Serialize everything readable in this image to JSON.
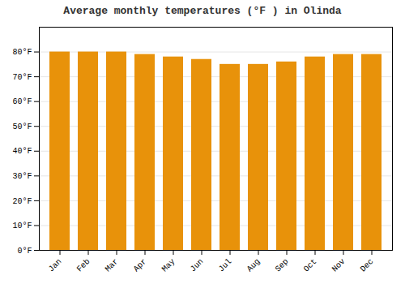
{
  "chart_data": {
    "type": "bar",
    "title": "Average monthly temperatures (°F ) in Olinda",
    "categories": [
      "Jan",
      "Feb",
      "Mar",
      "Apr",
      "May",
      "Jun",
      "Jul",
      "Aug",
      "Sep",
      "Oct",
      "Nov",
      "Dec"
    ],
    "values": [
      80,
      80,
      80,
      79,
      78,
      77,
      75,
      75,
      76,
      78,
      79,
      79
    ],
    "color": "#E8920A",
    "ylim": [
      0,
      90
    ],
    "yticks": [
      {
        "value": 0,
        "label": "0°F"
      },
      {
        "value": 10,
        "label": "10°F"
      },
      {
        "value": 20,
        "label": "20°F"
      },
      {
        "value": 30,
        "label": "30°F"
      },
      {
        "value": 40,
        "label": "40°F"
      },
      {
        "value": 50,
        "label": "50°F"
      },
      {
        "value": 60,
        "label": "60°F"
      },
      {
        "value": 70,
        "label": "70°F"
      },
      {
        "value": 80,
        "label": "80°F"
      }
    ],
    "grid": true
  }
}
